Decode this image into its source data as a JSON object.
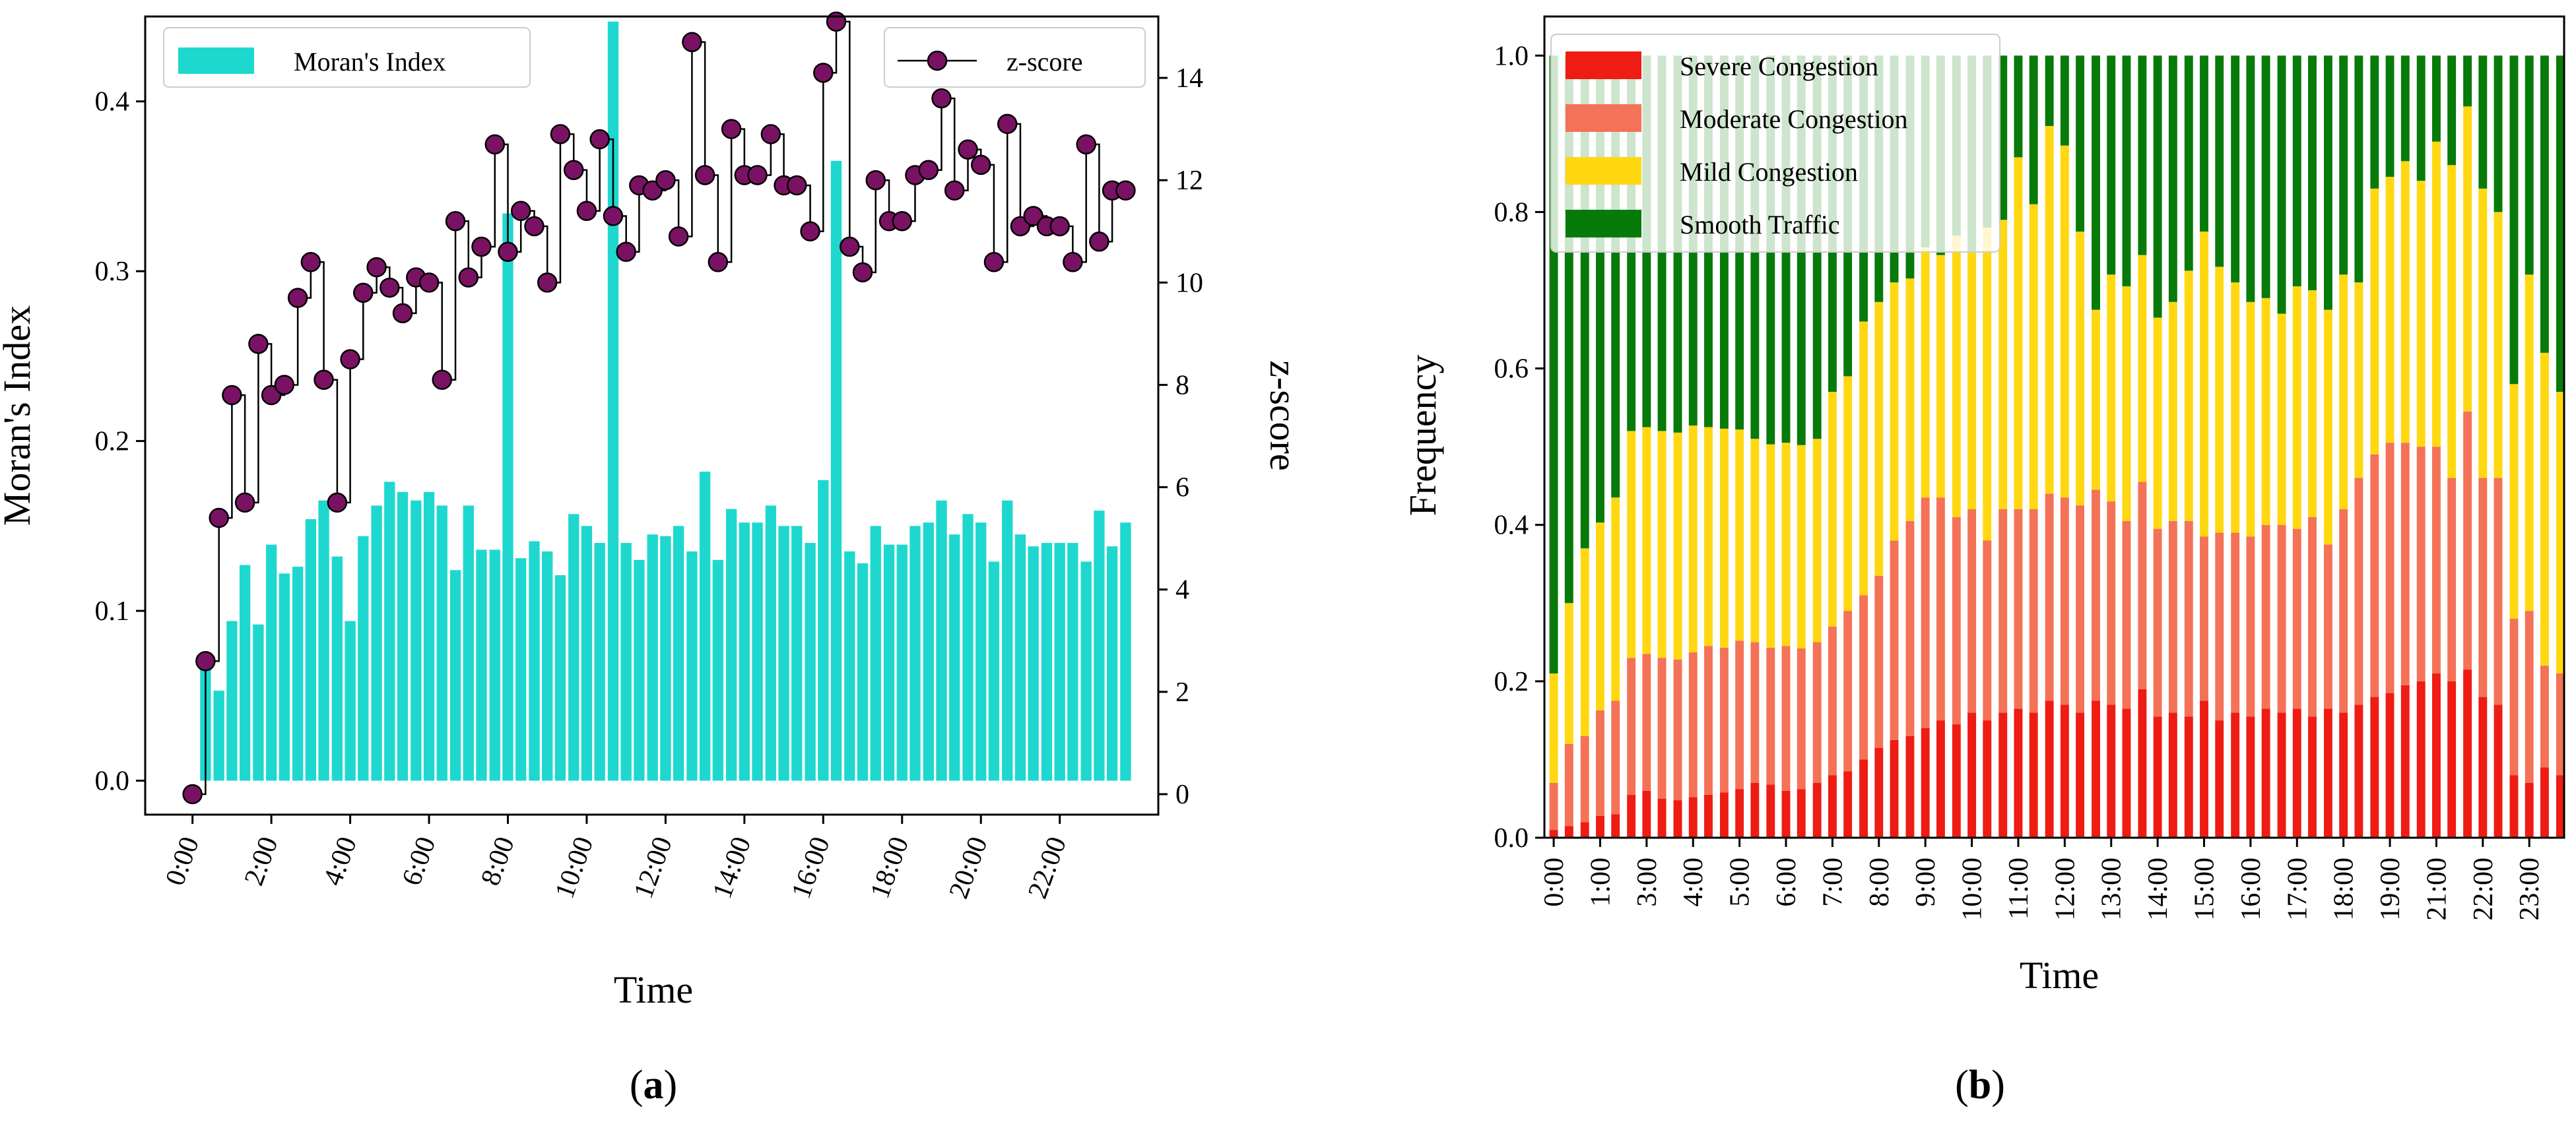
{
  "chart_data": [
    {
      "panel": "a",
      "type": "bar+line",
      "caption_label": "a",
      "xlabel": "Time",
      "ylabel": "Moran's Index",
      "y2label": "z-score",
      "ylim": [
        -0.02,
        0.45
      ],
      "y2lim": [
        -0.4,
        15.2
      ],
      "yticks": [
        "0.0",
        "0.1",
        "0.2",
        "0.3",
        "0.4"
      ],
      "y2ticks": [
        "0",
        "2",
        "4",
        "6",
        "8",
        "10",
        "12",
        "14"
      ],
      "xtick_labels": [
        "0:00",
        "2:00",
        "4:00",
        "6:00",
        "8:00",
        "10:00",
        "12:00",
        "14:00",
        "16:00",
        "18:00",
        "20:00",
        "22:00"
      ],
      "xrange": [
        -1.2,
        24.5
      ],
      "legend": {
        "bar": "Moran's Index",
        "line": "z-score"
      },
      "colors": {
        "bar": "#1ed8cf",
        "marker": "#7a1263",
        "line": "#000000"
      },
      "x": [
        0,
        0.33,
        0.67,
        1,
        1.33,
        1.67,
        2,
        2.33,
        2.67,
        3,
        3.33,
        3.67,
        4,
        4.33,
        4.67,
        5,
        5.33,
        5.67,
        6,
        6.33,
        6.67,
        7,
        7.33,
        7.67,
        8,
        8.33,
        8.67,
        9,
        9.33,
        9.67,
        10,
        10.33,
        10.67,
        11,
        11.33,
        11.67,
        12,
        12.33,
        12.67,
        13,
        13.33,
        13.67,
        14,
        14.33,
        14.67,
        15,
        15.33,
        15.67,
        16,
        16.33,
        16.67,
        17,
        17.33,
        17.67,
        18,
        18.33,
        18.67,
        19,
        19.33,
        19.67,
        20,
        20.33,
        20.67,
        21,
        21.33,
        21.67,
        22,
        22.33,
        22.67,
        23,
        23.33,
        23.67
      ],
      "series": [
        {
          "name": "Moran's Index",
          "values": [
            0.0,
            0.072,
            0.053,
            0.094,
            0.127,
            0.092,
            0.139,
            0.122,
            0.126,
            0.154,
            0.165,
            0.132,
            0.094,
            0.144,
            0.162,
            0.176,
            0.17,
            0.165,
            0.17,
            0.162,
            0.124,
            0.162,
            0.136,
            0.136,
            0.334,
            0.131,
            0.141,
            0.135,
            0.121,
            0.157,
            0.15,
            0.14,
            0.447,
            0.14,
            0.13,
            0.145,
            0.144,
            0.15,
            0.135,
            0.182,
            0.13,
            0.16,
            0.152,
            0.152,
            0.162,
            0.15,
            0.15,
            0.14,
            0.177,
            0.365,
            0.135,
            0.128,
            0.15,
            0.139,
            0.139,
            0.15,
            0.152,
            0.165,
            0.145,
            0.157,
            0.152,
            0.129,
            0.165,
            0.145,
            0.138,
            0.14,
            0.14,
            0.14,
            0.129,
            0.159,
            0.138,
            0.152
          ]
        },
        {
          "name": "z-score",
          "values": [
            0.0,
            2.6,
            5.4,
            7.8,
            5.7,
            8.8,
            7.8,
            8.0,
            9.7,
            10.4,
            8.1,
            5.7,
            8.5,
            9.8,
            10.3,
            9.9,
            9.4,
            10.1,
            10.0,
            8.1,
            11.2,
            10.1,
            10.7,
            12.7,
            10.6,
            11.4,
            11.1,
            10.0,
            12.9,
            12.2,
            11.4,
            12.8,
            11.3,
            10.6,
            11.9,
            11.8,
            12.0,
            10.9,
            14.7,
            12.1,
            10.4,
            13.0,
            12.1,
            12.1,
            12.9,
            11.9,
            11.9,
            11.0,
            14.1,
            15.1,
            10.7,
            10.2,
            12.0,
            11.2,
            11.2,
            12.1,
            12.2,
            13.6,
            11.8,
            12.6,
            12.3,
            10.4,
            13.1,
            11.1,
            11.3,
            11.1,
            11.1,
            10.4,
            12.7,
            10.8,
            11.8,
            11.8
          ]
        }
      ]
    },
    {
      "panel": "b",
      "type": "stacked-bar",
      "caption_label": "b",
      "xlabel": "Time",
      "ylabel": "Frequency",
      "ylim": [
        0,
        1.05
      ],
      "yticks": [
        "0.0",
        "0.2",
        "0.4",
        "0.6",
        "0.8",
        "1.0"
      ],
      "xtick_labels": [
        "0:00",
        "1:00",
        "3:00",
        "4:00",
        "5:00",
        "6:00",
        "7:00",
        "8:00",
        "9:00",
        "10:00",
        "11:00",
        "12:00",
        "13:00",
        "14:00",
        "15:00",
        "16:00",
        "17:00",
        "18:00",
        "19:00",
        "21:00",
        "22:00",
        "23:00"
      ],
      "xtick_positions": [
        0,
        1,
        2,
        3,
        4,
        5,
        6,
        7,
        8,
        9,
        10,
        11,
        12,
        13,
        14,
        15,
        16,
        17,
        18,
        19,
        20,
        21
      ],
      "xrange": [
        -0.2,
        21.75
      ],
      "legend": [
        "Severe Congestion",
        "Moderate Congestion",
        "Mild Congestion",
        "Smooth Traffic"
      ],
      "colors": {
        "Severe Congestion": "#ee1c12",
        "Moderate Congestion": "#f47257",
        "Mild Congestion": "#ffd812",
        "Smooth Traffic": "#087a09"
      },
      "x": [
        0,
        0.33,
        0.67,
        1,
        1.33,
        1.67,
        2,
        2.33,
        2.67,
        3,
        3.33,
        3.67,
        4,
        4.33,
        4.67,
        5,
        5.33,
        5.67,
        6,
        6.33,
        6.67,
        7,
        7.33,
        7.67,
        8,
        8.33,
        8.67,
        9,
        9.33,
        9.67,
        10,
        10.33,
        10.67,
        11,
        11.33,
        11.67,
        12,
        12.33,
        12.67,
        13,
        13.33,
        13.67,
        14,
        14.33,
        14.67,
        15,
        15.33,
        15.67,
        16,
        16.33,
        16.67,
        17,
        17.33,
        17.67,
        18,
        18.33,
        18.67,
        19,
        19.33,
        19.67,
        20,
        20.33,
        20.67,
        21,
        21.33,
        21.67
      ],
      "series": [
        {
          "name": "Severe Congestion",
          "values": [
            0.01,
            0.015,
            0.02,
            0.028,
            0.03,
            0.055,
            0.06,
            0.05,
            0.048,
            0.052,
            0.055,
            0.058,
            0.062,
            0.07,
            0.068,
            0.06,
            0.062,
            0.07,
            0.08,
            0.085,
            0.1,
            0.115,
            0.125,
            0.13,
            0.14,
            0.15,
            0.145,
            0.16,
            0.15,
            0.16,
            0.165,
            0.16,
            0.175,
            0.17,
            0.16,
            0.175,
            0.17,
            0.165,
            0.19,
            0.155,
            0.16,
            0.155,
            0.175,
            0.15,
            0.16,
            0.155,
            0.165,
            0.16,
            0.165,
            0.155,
            0.165,
            0.16,
            0.17,
            0.18,
            0.185,
            0.195,
            0.2,
            0.21,
            0.2,
            0.215,
            0.18,
            0.17,
            0.08,
            0.07,
            0.09,
            0.08
          ]
        },
        {
          "name": "Moderate Congestion",
          "values": [
            0.06,
            0.105,
            0.11,
            0.135,
            0.145,
            0.175,
            0.175,
            0.18,
            0.18,
            0.185,
            0.19,
            0.185,
            0.19,
            0.18,
            0.175,
            0.185,
            0.18,
            0.18,
            0.19,
            0.205,
            0.21,
            0.22,
            0.255,
            0.275,
            0.295,
            0.285,
            0.265,
            0.26,
            0.23,
            0.26,
            0.255,
            0.26,
            0.265,
            0.265,
            0.265,
            0.27,
            0.26,
            0.24,
            0.265,
            0.24,
            0.245,
            0.25,
            0.21,
            0.24,
            0.23,
            0.23,
            0.235,
            0.24,
            0.23,
            0.255,
            0.21,
            0.26,
            0.29,
            0.31,
            0.32,
            0.31,
            0.3,
            0.29,
            0.26,
            0.33,
            0.28,
            0.29,
            0.2,
            0.22,
            0.13,
            0.13
          ]
        },
        {
          "name": "Mild Congestion",
          "values": [
            0.14,
            0.18,
            0.24,
            0.24,
            0.26,
            0.29,
            0.29,
            0.29,
            0.29,
            0.29,
            0.28,
            0.28,
            0.27,
            0.26,
            0.26,
            0.26,
            0.26,
            0.26,
            0.3,
            0.3,
            0.35,
            0.35,
            0.33,
            0.31,
            0.32,
            0.31,
            0.36,
            0.33,
            0.4,
            0.37,
            0.45,
            0.39,
            0.47,
            0.45,
            0.35,
            0.23,
            0.29,
            0.3,
            0.29,
            0.27,
            0.28,
            0.32,
            0.39,
            0.34,
            0.32,
            0.3,
            0.29,
            0.27,
            0.31,
            0.29,
            0.3,
            0.3,
            0.25,
            0.34,
            0.34,
            0.36,
            0.34,
            0.39,
            0.4,
            0.39,
            0.37,
            0.34,
            0.3,
            0.43,
            0.4,
            0.36
          ]
        },
        {
          "name": "Smooth Traffic",
          "values": [
            0.79,
            0.7,
            0.63,
            0.597,
            0.565,
            0.48,
            0.475,
            0.48,
            0.482,
            0.473,
            0.475,
            0.477,
            0.478,
            0.49,
            0.497,
            0.495,
            0.498,
            0.49,
            0.43,
            0.41,
            0.34,
            0.315,
            0.29,
            0.285,
            0.245,
            0.255,
            0.23,
            0.25,
            0.22,
            0.21,
            0.13,
            0.19,
            0.09,
            0.115,
            0.225,
            0.325,
            0.28,
            0.295,
            0.255,
            0.335,
            0.315,
            0.275,
            0.225,
            0.27,
            0.29,
            0.315,
            0.31,
            0.33,
            0.295,
            0.3,
            0.325,
            0.28,
            0.29,
            0.17,
            0.155,
            0.135,
            0.16,
            0.11,
            0.14,
            0.065,
            0.17,
            0.2,
            0.42,
            0.28,
            0.38,
            0.43
          ]
        }
      ]
    }
  ]
}
